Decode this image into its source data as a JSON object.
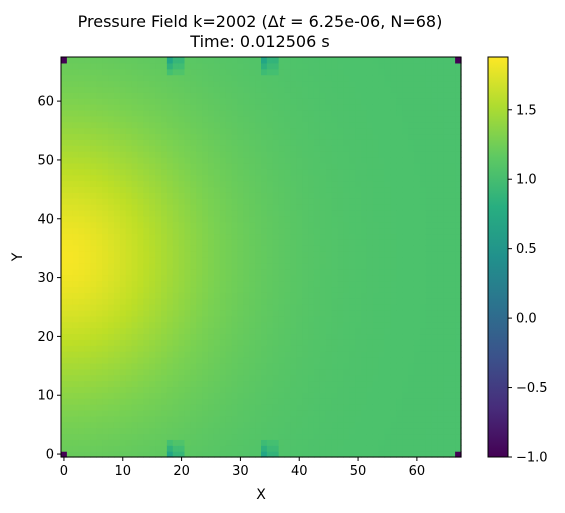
{
  "chart_data": {
    "type": "heatmap",
    "title_line1_prefix": "Pressure Field k=2002 (",
    "title_delta": "Δ",
    "title_t": "t",
    "title_line1_suffix": " = 6.25e-06, N=68)",
    "title_line2": "Time: 0.012506 s",
    "xlabel": "X",
    "ylabel": "Y",
    "xlim": [
      -0.5,
      67.5
    ],
    "ylim": [
      -0.5,
      67.5
    ],
    "x_ticks": [
      0,
      10,
      20,
      30,
      40,
      50,
      60
    ],
    "y_ticks": [
      0,
      10,
      20,
      30,
      40,
      50,
      60
    ],
    "grid": false,
    "colormap": "viridis",
    "colorbar": {
      "vmin": -1.0,
      "vmax": 1.88,
      "ticks": [
        -1.0,
        -0.5,
        0.0,
        0.5,
        1.0,
        1.5
      ],
      "tick_labels": [
        "−1.0",
        "−0.5",
        "0.0",
        "0.5",
        "1.0",
        "1.5"
      ]
    },
    "field": {
      "grid_size": 68,
      "background_value": 1.05,
      "source_center": [
        0,
        33.5
      ],
      "source_peak_value": 1.85,
      "corner_cells_value": -1.0,
      "corner_cells": [
        [
          0,
          0
        ],
        [
          67,
          0
        ],
        [
          0,
          67
        ],
        [
          67,
          67
        ]
      ],
      "wall_notches_x": [
        18,
        34
      ],
      "wall_notch_value": 0.7
    }
  }
}
